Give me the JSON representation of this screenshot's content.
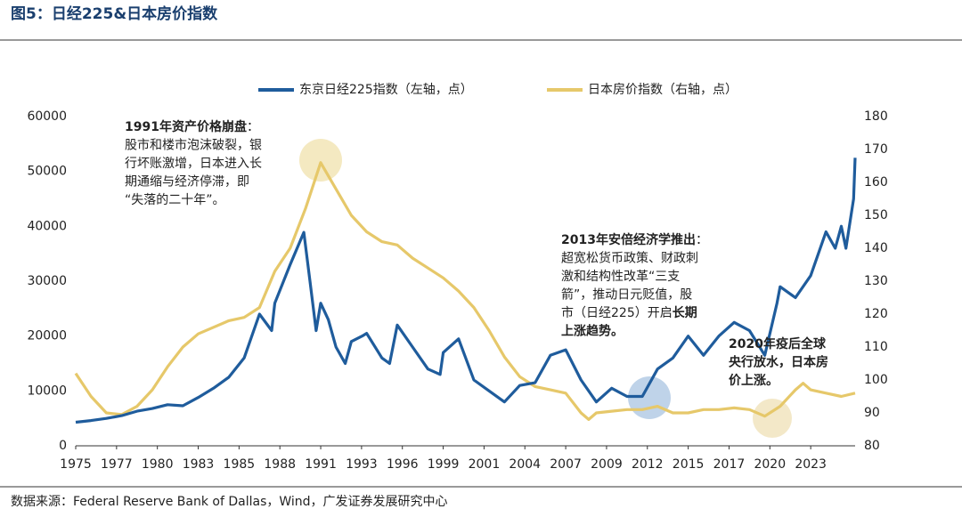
{
  "header": {
    "title": "图5：日经225&日本房价指数"
  },
  "chart_data": {
    "type": "line",
    "xlim": [
      1975,
      2025.9
    ],
    "xticks": [
      1975,
      {
        "value": 1977.667,
        "label": "1977"
      },
      {
        "value": 1980.333,
        "label": "1980"
      },
      1983,
      {
        "value": 1985.667,
        "label": "1985"
      },
      {
        "value": 1988.333,
        "label": "1988"
      },
      1991,
      {
        "value": 1993.667,
        "label": "1993"
      },
      {
        "value": 1996.333,
        "label": "1996"
      },
      1999,
      {
        "value": 2001.667,
        "label": "2001"
      },
      {
        "value": 2004.333,
        "label": "2004"
      },
      2007,
      {
        "value": 2009.667,
        "label": "2009"
      },
      {
        "value": 2012.333,
        "label": "2012"
      },
      2015,
      {
        "value": 2017.667,
        "label": "2017"
      },
      {
        "value": 2020.333,
        "label": "2020"
      },
      2023
    ],
    "ylim": [
      0,
      60000
    ],
    "yticks": [
      0,
      10000,
      20000,
      30000,
      40000,
      50000,
      60000
    ],
    "y2lim": [
      80,
      180
    ],
    "y2ticks": [
      80,
      90,
      100,
      110,
      120,
      130,
      140,
      150,
      160,
      170,
      180
    ],
    "grid": false,
    "legend": "top",
    "series": [
      {
        "name": "东京日经225指数（左轴，点）",
        "color": "#1f5c9c",
        "x": [
          1975,
          1976,
          1977,
          1978,
          1979,
          1980,
          1981,
          1982,
          1983,
          1984,
          1985,
          1986,
          1987,
          1987.8,
          1988,
          1989,
          1989.9,
          1990.3,
          1990.7,
          1991,
          1991.5,
          1992,
          1992.6,
          1993,
          1993.7,
          1994,
          1995,
          1995.5,
          1996,
          1997,
          1998,
          1998.8,
          1999,
          2000,
          2001,
          2002,
          2003,
          2004,
          2005,
          2006,
          2007,
          2008,
          2009,
          2010,
          2011,
          2012,
          2013,
          2014,
          2015,
          2016,
          2017,
          2018,
          2019,
          2020,
          2020.8,
          2021,
          2022,
          2023,
          2024,
          2024.6,
          2025,
          2025.3,
          2025.8,
          2025.9
        ],
        "values": [
          4300,
          4600,
          5000,
          5500,
          6300,
          6800,
          7500,
          7300,
          8800,
          10500,
          12500,
          16000,
          24000,
          21000,
          26000,
          33000,
          38900,
          30000,
          21000,
          26000,
          23000,
          18000,
          15000,
          19000,
          20000,
          20500,
          16000,
          15000,
          22000,
          18000,
          14000,
          13000,
          17000,
          19500,
          12000,
          10000,
          8000,
          11000,
          11500,
          16500,
          17500,
          12000,
          8000,
          10500,
          9000,
          9000,
          14000,
          16000,
          20000,
          16500,
          20000,
          22500,
          21000,
          16500,
          26000,
          29000,
          27000,
          31000,
          39000,
          36000,
          40000,
          36000,
          45000,
          52500
        ]
      },
      {
        "name": "日本房价指数（右轴，点）",
        "color": "#e6c86a",
        "axis": "y2",
        "x": [
          1975,
          1976,
          1977,
          1978,
          1979,
          1980,
          1981,
          1982,
          1983,
          1984,
          1985,
          1986,
          1987,
          1988,
          1989,
          1990,
          1991,
          1992,
          1993,
          1994,
          1995,
          1996,
          1997,
          1998,
          1999,
          2000,
          2001,
          2002,
          2003,
          2004,
          2005,
          2006,
          2007,
          2008,
          2008.5,
          2009,
          2010,
          2011,
          2012,
          2013,
          2014,
          2015,
          2016,
          2017,
          2018,
          2019,
          2020,
          2021,
          2022,
          2022.5,
          2023,
          2024,
          2025,
          2025.9
        ],
        "values": [
          102,
          95,
          90,
          89.5,
          92,
          97,
          104,
          110,
          114,
          116,
          118,
          119,
          122,
          133,
          140,
          152,
          166,
          158,
          150,
          145,
          142,
          141,
          137,
          134,
          131,
          127,
          122,
          115,
          107,
          101,
          98,
          97,
          96,
          90,
          88,
          90,
          90.5,
          91,
          91,
          92,
          90,
          90,
          91,
          91,
          91.5,
          91,
          89,
          92,
          97,
          99,
          97,
          96,
          95,
          96
        ]
      }
    ],
    "annotations": [
      {
        "lines": [
          [
            {
              "text": "1991年资产价格崩盘",
              "bold": true
            },
            {
              "text": "：",
              "bold": false
            }
          ],
          [
            {
              "text": "股市和楼市泡沫破裂，银",
              "bold": false
            }
          ],
          [
            {
              "text": "行坏账激增，日本进入长",
              "bold": false
            }
          ],
          [
            {
              "text": "期通缩与经济停滞，即",
              "bold": false
            }
          ],
          [
            {
              "text": "“失落的二十年”。",
              "bold": false
            }
          ]
        ]
      },
      {
        "lines": [
          [
            {
              "text": "2013年安倍经济学推出",
              "bold": true
            },
            {
              "text": "：",
              "bold": false
            }
          ],
          [
            {
              "text": "超宽松货币政策、财政刺",
              "bold": false
            }
          ],
          [
            {
              "text": "激和结构性改革“三支",
              "bold": false
            }
          ],
          [
            {
              "text": "箭”，推动日元贬值，股",
              "bold": false
            }
          ],
          [
            {
              "text": "市（日经225）开启",
              "bold": false
            },
            {
              "text": "长期",
              "bold": true
            }
          ],
          [
            {
              "text": "上涨趋势。",
              "bold": true
            }
          ]
        ]
      },
      {
        "lines": [
          [
            {
              "text": "2020年疫后全球",
              "bold": true
            }
          ],
          [
            {
              "text": "央行放水，日本房",
              "bold": true
            }
          ],
          [
            {
              "text": "价上涨。",
              "bold": true
            }
          ]
        ]
      }
    ]
  },
  "footer": {
    "source": "数据来源：Federal Reserve Bank of Dallas，Wind，广发证券发展研究中心"
  }
}
